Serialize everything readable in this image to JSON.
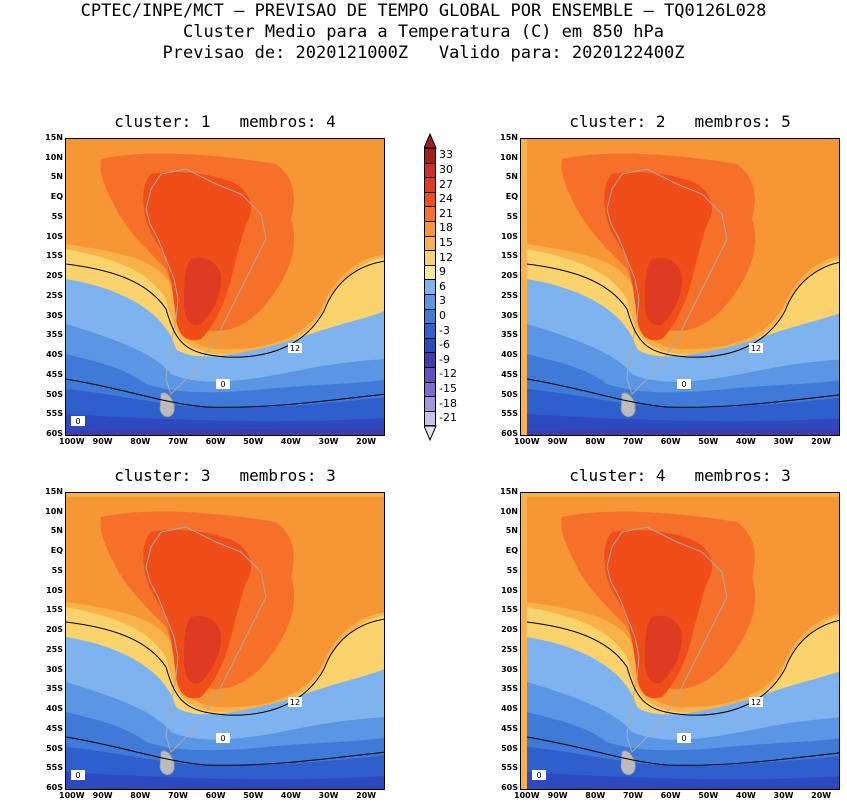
{
  "header": {
    "line1": "CPTEC/INPE/MCT – PREVISAO DE TEMPO GLOBAL POR ENSEMBLE – TQ0126L028",
    "line2": "Cluster Medio para a Temperatura (C) em 850 hPa",
    "line3": "Previsao de: 2020121000Z   Valido para: 2020122400Z"
  },
  "chart_data": {
    "type": "heatmap",
    "panels": [
      {
        "title": "cluster: 1   membros: 4",
        "contour_labels": [
          "12",
          "0",
          "0"
        ]
      },
      {
        "title": "cluster: 2   membros: 5",
        "contour_labels": [
          "12",
          "0"
        ]
      },
      {
        "title": "cluster: 3   membros: 3",
        "contour_labels": [
          "12",
          "0",
          "0"
        ]
      },
      {
        "title": "cluster: 4   membros: 3",
        "contour_labels": [
          "12",
          "0",
          "0"
        ]
      }
    ],
    "y_ticks": [
      "15N",
      "10N",
      "5N",
      "EQ",
      "5S",
      "10S",
      "15S",
      "20S",
      "25S",
      "30S",
      "35S",
      "40S",
      "45S",
      "50S",
      "55S",
      "60S"
    ],
    "x_ticks": [
      "100W",
      "90W",
      "80W",
      "70W",
      "60W",
      "50W",
      "40W",
      "30W",
      "20W"
    ],
    "xlim": [
      -100,
      -15
    ],
    "ylim": [
      -60,
      15
    ],
    "colorbar": {
      "levels": [
        "33",
        "30",
        "27",
        "24",
        "21",
        "18",
        "15",
        "12",
        "9",
        "6",
        "3",
        "0",
        "-3",
        "-6",
        "-9",
        "-12",
        "-15",
        "-18",
        "-21"
      ],
      "colors": [
        "#a51c1c",
        "#c9302c",
        "#df3b22",
        "#f04d18",
        "#f6702a",
        "#f79634",
        "#f9b149",
        "#fbd36c",
        "#fde99a",
        "#7fb3ef",
        "#5b96e4",
        "#3f7ad8",
        "#2f5fcd",
        "#2d49bf",
        "#3f3bb0",
        "#5f4fbf",
        "#7d6ccc",
        "#a197dc",
        "#c8c2ea"
      ]
    }
  }
}
